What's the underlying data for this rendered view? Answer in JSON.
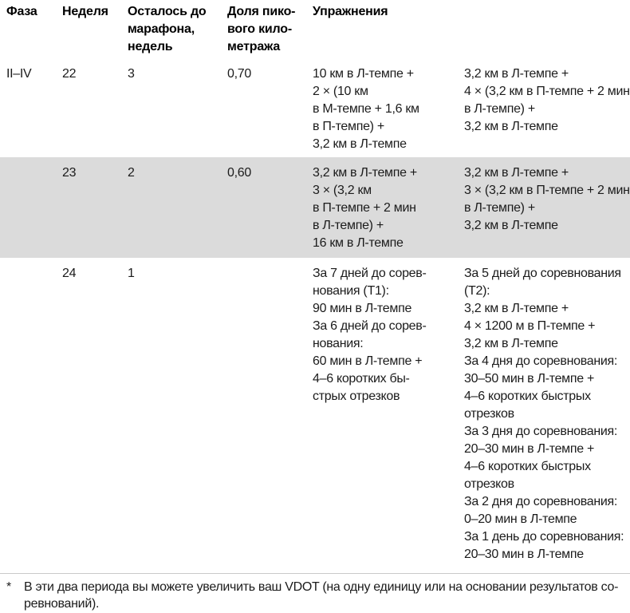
{
  "table": {
    "headers": {
      "phase": "Фаза",
      "week": "Неделя",
      "weeks_left": "Осталось до\nмарафона,\nнедель",
      "peak_share": "Доля пико-\nвого кило-\nметража",
      "exercises": "Упражнения"
    },
    "rows": [
      {
        "phase": "II–IV",
        "week": "22",
        "weeks_left": "3",
        "peak_share": "0,70",
        "exercise_a": "10 км в Л-темпе +\n2 × (10 км\nв М-темпе + 1,6 км\nв П-темпе) +\n3,2 км в Л-темпе",
        "exercise_b": "3,2 км в Л-темпе +\n4 × (3,2 км в П-темпе + 2 мин\nв Л-темпе) +\n3,2 км в Л-темпе"
      },
      {
        "phase": "",
        "week": "23",
        "weeks_left": "2",
        "peak_share": "0,60",
        "exercise_a": "3,2 км в Л-темпе +\n3 × (3,2 км\nв П-темпе + 2 мин\nв Л-темпе) +\n16 км в Л-темпе",
        "exercise_b": "3,2 км в Л-темпе +\n3 × (3,2 км в П-темпе + 2 мин\nв Л-темпе) +\n3,2 км в Л-темпе"
      },
      {
        "phase": "",
        "week": "24",
        "weeks_left": "1",
        "peak_share": "",
        "exercise_a": "За 7 дней до сорев-\nнования (Т1):\n90 мин в Л-темпе\nЗа 6 дней до сорев-\nнования:\n60 мин в Л-темпе +\n4–6 коротких бы-\nстрых отрезков",
        "exercise_b": "За 5 дней до соревнования\n(Т2):\n3,2 км в Л-темпе +\n4 × 1200 м в П-темпе +\n3,2 км в Л-темпе\nЗа 4 дня до соревнования:\n30–50 мин в Л-темпе +\n4–6 коротких быстрых\nотрезков\nЗа 3 дня до соревнования:\n20–30 мин в Л-темпе +\n4–6 коротких быстрых\nотрезков\nЗа 2 дня до соревнования:\n0–20 мин в Л-темпе\nЗа 1 день до соревнования:\n20–30 мин в Л-темпе"
      }
    ]
  },
  "footnote": {
    "marker": "*",
    "text": "В эти два периода вы можете увеличить ваш VDOT (на одну единицу или на основании результатов со-\nревнований)."
  },
  "colors": {
    "shaded_row": "#dbdbdb",
    "rule": "#c9c9c9",
    "text": "#1b1b1b"
  }
}
